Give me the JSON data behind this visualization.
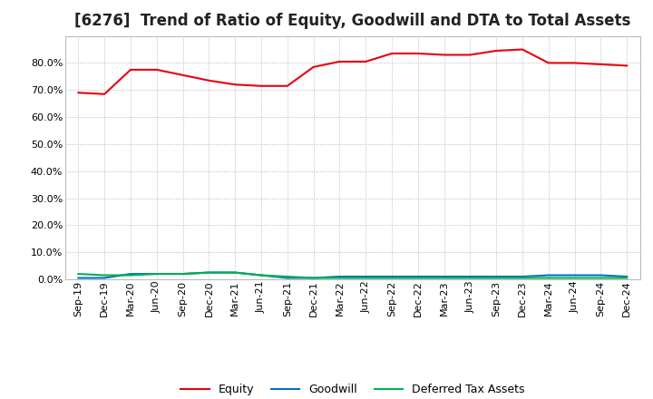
{
  "title": "[6276]  Trend of Ratio of Equity, Goodwill and DTA to Total Assets",
  "x_labels": [
    "Sep-19",
    "Dec-19",
    "Mar-20",
    "Jun-20",
    "Sep-20",
    "Dec-20",
    "Mar-21",
    "Jun-21",
    "Sep-21",
    "Dec-21",
    "Mar-22",
    "Jun-22",
    "Sep-22",
    "Dec-22",
    "Mar-23",
    "Jun-23",
    "Sep-23",
    "Dec-23",
    "Mar-24",
    "Jun-24",
    "Sep-24",
    "Dec-24"
  ],
  "equity": [
    69.0,
    68.5,
    77.5,
    77.5,
    75.5,
    73.5,
    72.0,
    71.5,
    71.5,
    78.5,
    80.5,
    80.5,
    83.5,
    83.5,
    83.0,
    83.0,
    84.5,
    85.0,
    80.0,
    80.0,
    79.5,
    79.0
  ],
  "goodwill": [
    0.5,
    0.5,
    2.0,
    2.0,
    2.0,
    2.5,
    2.5,
    1.5,
    0.5,
    0.5,
    1.0,
    1.0,
    1.0,
    1.0,
    1.0,
    1.0,
    1.0,
    1.0,
    1.5,
    1.5,
    1.5,
    1.0
  ],
  "dta": [
    2.0,
    1.5,
    1.5,
    2.0,
    2.0,
    2.5,
    2.5,
    1.5,
    1.0,
    0.5,
    0.5,
    0.5,
    0.5,
    0.5,
    0.5,
    0.5,
    0.5,
    0.5,
    0.5,
    0.5,
    0.5,
    0.5
  ],
  "equity_color": "#e8000d",
  "goodwill_color": "#0070c0",
  "dta_color": "#00b050",
  "bg_color": "#ffffff",
  "plot_bg_color": "#ffffff",
  "grid_color": "#aaaaaa",
  "ylim": [
    0,
    90
  ],
  "yticks": [
    0,
    10,
    20,
    30,
    40,
    50,
    60,
    70,
    80
  ],
  "legend_labels": [
    "Equity",
    "Goodwill",
    "Deferred Tax Assets"
  ],
  "title_fontsize": 12,
  "tick_fontsize": 8
}
